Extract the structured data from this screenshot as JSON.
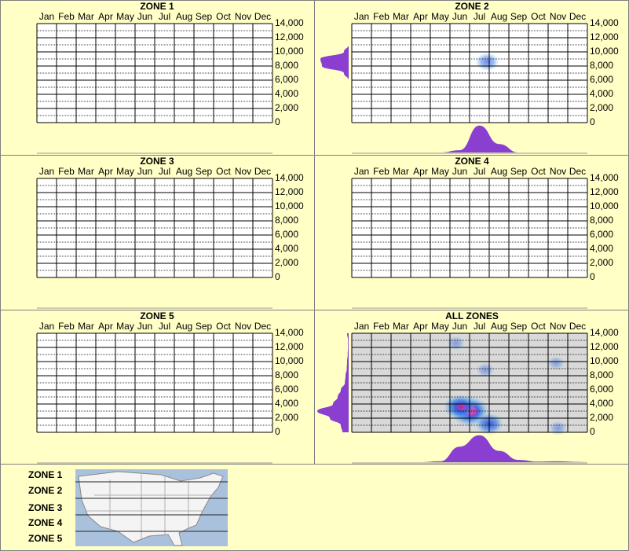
{
  "chart_data": [
    {
      "type": "heatmap",
      "title": "ZONE 1",
      "categories": [
        "Jan",
        "Feb",
        "Mar",
        "Apr",
        "May",
        "Jun",
        "Jul",
        "Aug",
        "Sep",
        "Oct",
        "Nov",
        "Dec"
      ],
      "ylim": [
        0,
        14000
      ],
      "yticks": [
        0,
        {
          "value": 2000,
          "label": "2,000"
        },
        {
          "value": 4000,
          "label": "4,000"
        },
        {
          "value": 6000,
          "label": "6,000"
        },
        {
          "value": 8000,
          "label": "8,000"
        },
        {
          "value": 10000,
          "label": "10,000"
        },
        {
          "value": 12000,
          "label": "12,000"
        },
        {
          "value": 14000,
          "label": "14,000"
        }
      ],
      "minor_yticks": [
        1000,
        3000,
        5000,
        7000,
        9000,
        11000,
        13000
      ],
      "plot_background": "#ffffff",
      "hotspots": []
    },
    {
      "type": "heatmap",
      "title": "ZONE 2",
      "categories": [
        "Jan",
        "Feb",
        "Mar",
        "Apr",
        "May",
        "Jun",
        "Jul",
        "Aug",
        "Sep",
        "Oct",
        "Nov",
        "Dec"
      ],
      "ylim": [
        0,
        14000
      ],
      "yticks": [
        0,
        {
          "value": 2000,
          "label": "2,000"
        },
        {
          "value": 4000,
          "label": "4,000"
        },
        {
          "value": 6000,
          "label": "6,000"
        },
        {
          "value": 8000,
          "label": "8,000"
        },
        {
          "value": 10000,
          "label": "10,000"
        },
        {
          "value": 12000,
          "label": "12,000"
        },
        {
          "value": 14000,
          "label": "14,000"
        }
      ],
      "minor_yticks": [
        1000,
        3000,
        5000,
        7000,
        9000,
        11000,
        13000
      ],
      "plot_background": "#ffffff",
      "hotspots": [
        {
          "x": 6.9,
          "y": 8600,
          "intensity": 0.35
        }
      ],
      "density_color": "#8a3fd1",
      "month_density": [
        0,
        0,
        0,
        0,
        0,
        0.08,
        0.95,
        0.3,
        0,
        0,
        0,
        0
      ],
      "elevation_density": [
        0,
        0,
        0,
        0,
        0,
        0,
        0,
        0.15,
        0.85,
        0.9,
        0.15,
        0,
        0,
        0,
        0
      ]
    },
    {
      "type": "heatmap",
      "title": "ZONE 3",
      "categories": [
        "Jan",
        "Feb",
        "Mar",
        "Apr",
        "May",
        "Jun",
        "Jul",
        "Aug",
        "Sep",
        "Oct",
        "Nov",
        "Dec"
      ],
      "ylim": [
        0,
        14000
      ],
      "yticks": [
        0,
        {
          "value": 2000,
          "label": "2,000"
        },
        {
          "value": 4000,
          "label": "4,000"
        },
        {
          "value": 6000,
          "label": "6,000"
        },
        {
          "value": 8000,
          "label": "8,000"
        },
        {
          "value": 10000,
          "label": "10,000"
        },
        {
          "value": 12000,
          "label": "12,000"
        },
        {
          "value": 14000,
          "label": "14,000"
        }
      ],
      "minor_yticks": [
        1000,
        3000,
        5000,
        7000,
        9000,
        11000,
        13000
      ],
      "plot_background": "#ffffff",
      "hotspots": []
    },
    {
      "type": "heatmap",
      "title": "ZONE 4",
      "categories": [
        "Jan",
        "Feb",
        "Mar",
        "Apr",
        "May",
        "Jun",
        "Jul",
        "Aug",
        "Sep",
        "Oct",
        "Nov",
        "Dec"
      ],
      "ylim": [
        0,
        14000
      ],
      "yticks": [
        0,
        {
          "value": 2000,
          "label": "2,000"
        },
        {
          "value": 4000,
          "label": "4,000"
        },
        {
          "value": 6000,
          "label": "6,000"
        },
        {
          "value": 8000,
          "label": "8,000"
        },
        {
          "value": 10000,
          "label": "10,000"
        },
        {
          "value": 12000,
          "label": "12,000"
        },
        {
          "value": 14000,
          "label": "14,000"
        }
      ],
      "minor_yticks": [
        1000,
        3000,
        5000,
        7000,
        9000,
        11000,
        13000
      ],
      "plot_background": "#ffffff",
      "hotspots": []
    },
    {
      "type": "heatmap",
      "title": "ZONE 5",
      "categories": [
        "Jan",
        "Feb",
        "Mar",
        "Apr",
        "May",
        "Jun",
        "Jul",
        "Aug",
        "Sep",
        "Oct",
        "Nov",
        "Dec"
      ],
      "ylim": [
        0,
        14000
      ],
      "yticks": [
        0,
        {
          "value": 2000,
          "label": "2,000"
        },
        {
          "value": 4000,
          "label": "4,000"
        },
        {
          "value": 6000,
          "label": "6,000"
        },
        {
          "value": 8000,
          "label": "8,000"
        },
        {
          "value": 10000,
          "label": "10,000"
        },
        {
          "value": 12000,
          "label": "12,000"
        },
        {
          "value": 14000,
          "label": "14,000"
        }
      ],
      "minor_yticks": [
        1000,
        3000,
        5000,
        7000,
        9000,
        11000,
        13000
      ],
      "plot_background": "#ffffff",
      "hotspots": []
    },
    {
      "type": "heatmap",
      "title": "ALL ZONES",
      "categories": [
        "Jan",
        "Feb",
        "Mar",
        "Apr",
        "May",
        "Jun",
        "Jul",
        "Aug",
        "Sep",
        "Oct",
        "Nov",
        "Dec"
      ],
      "ylim": [
        0,
        14000
      ],
      "yticks": [
        0,
        {
          "value": 2000,
          "label": "2,000"
        },
        {
          "value": 4000,
          "label": "4,000"
        },
        {
          "value": 6000,
          "label": "6,000"
        },
        {
          "value": 8000,
          "label": "8,000"
        },
        {
          "value": 10000,
          "label": "10,000"
        },
        {
          "value": 12000,
          "label": "12,000"
        },
        {
          "value": 14000,
          "label": "14,000"
        }
      ],
      "minor_yticks": [
        1000,
        3000,
        5000,
        7000,
        9000,
        11000,
        13000
      ],
      "plot_background": "#d9d9d9",
      "hotspots": [
        {
          "x": 6.0,
          "y": 3000,
          "intensity": 1
        },
        {
          "x": 5.5,
          "y": 3600,
          "intensity": 0.7
        },
        {
          "x": 7.0,
          "y": 1200,
          "intensity": 0.55
        },
        {
          "x": 5.3,
          "y": 12600,
          "intensity": 0.15
        },
        {
          "x": 6.8,
          "y": 8800,
          "intensity": 0.15
        },
        {
          "x": 10.4,
          "y": 9800,
          "intensity": 0.12
        },
        {
          "x": 10.5,
          "y": 600,
          "intensity": 0.15
        }
      ],
      "density_color": "#8a3fd1",
      "month_density": [
        0,
        0,
        0,
        0,
        0.03,
        0.55,
        0.95,
        0.4,
        0.08,
        0.02,
        0.03,
        0.01
      ],
      "elevation_density": [
        0.2,
        0.25,
        0.6,
        1,
        0.5,
        0.35,
        0.25,
        0.12,
        0.1,
        0.06,
        0.05,
        0.03,
        0.02,
        0.02,
        0.05
      ]
    }
  ],
  "zone_legend": {
    "labels": [
      "ZONE 1",
      "ZONE 2",
      "ZONE 3",
      "ZONE 4",
      "ZONE 5"
    ]
  }
}
